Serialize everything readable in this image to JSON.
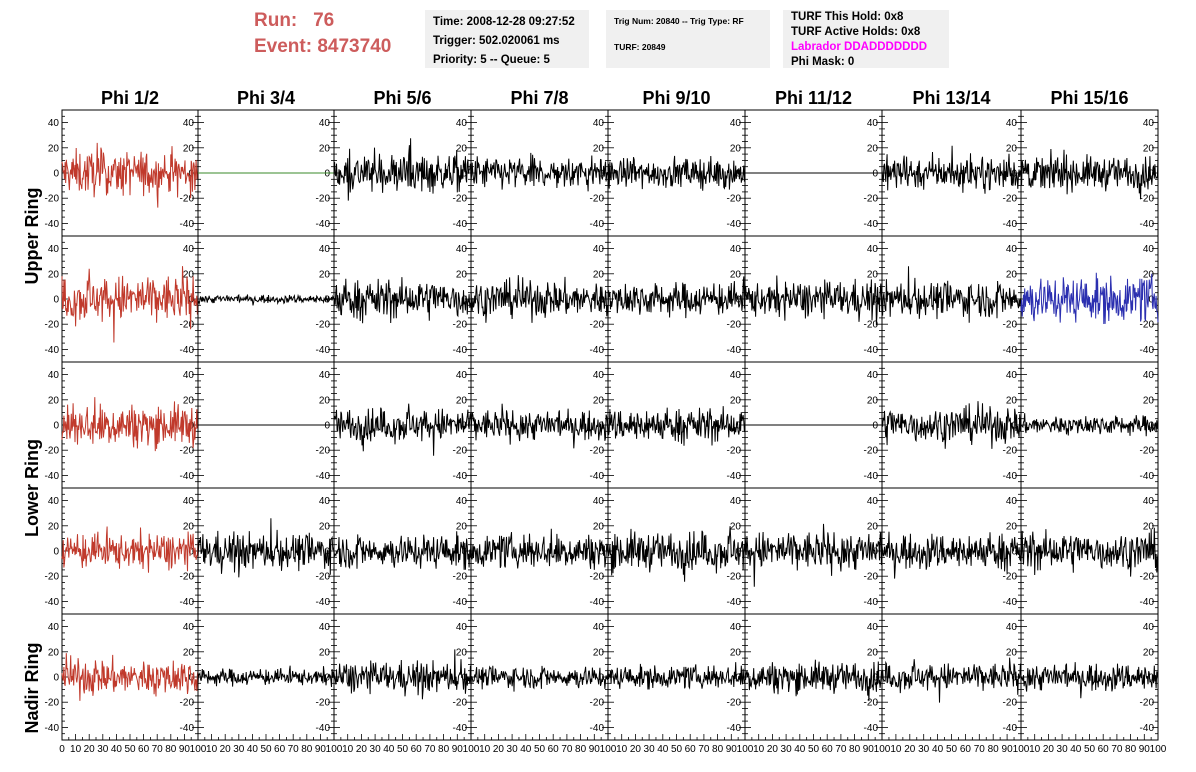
{
  "header": {
    "run_label": "Run:",
    "run_value": "76",
    "event_label": "Event:",
    "event_value": "8473740",
    "time": "Time: 2008-12-28 09:27:52",
    "trigger": "Trigger: 502.020061 ms",
    "priority": "Priority: 5 -- Queue: 5",
    "trig_num": "Trig Num: 20840 -- Trig Type: RF",
    "turf": "TURF: 20849",
    "turf_this_hold": "TURF This Hold: 0x8",
    "turf_active_holds": "TURF Active Holds: 0x8",
    "labrador": "Labrador DDADDDDDDD",
    "phi_mask": "Phi Mask: 0"
  },
  "colors": {
    "header_run": "#cd5c5c",
    "labrador": "#ff00ff",
    "box_bg": "#f0f0f0",
    "trace_red": "#c0392b",
    "trace_black": "#000000",
    "trace_green": "#3a8a2a",
    "trace_blue": "#2b2fb0"
  },
  "chart_data": {
    "type": "line",
    "columns": [
      "Phi 1/2",
      "Phi 3/4",
      "Phi 5/6",
      "Phi 7/8",
      "Phi 9/10",
      "Phi 11/12",
      "Phi 13/14",
      "Phi 15/16"
    ],
    "rows": [
      "Upper Ring",
      "Upper Ring",
      "Lower Ring",
      "Lower Ring",
      "Nadir Ring"
    ],
    "row_labels": [
      "Upper Ring",
      "Lower Ring",
      "Nadir Ring"
    ],
    "ylim": [
      -50,
      50
    ],
    "y_ticks": [
      "40",
      "20",
      "0",
      "-20",
      "-40"
    ],
    "xlim": [
      0,
      100
    ],
    "x_tick_labels_first": [
      "0",
      "10",
      "20",
      "30",
      "40",
      "50",
      "60",
      "70",
      "80",
      "90",
      "100"
    ],
    "x_tick_labels_other": [
      "10",
      "20",
      "30",
      "40",
      "50",
      "60",
      "70",
      "80",
      "90",
      "100"
    ],
    "panels": [
      [
        {
          "color": "red",
          "amp": 16
        },
        {
          "color": "green",
          "amp": 0
        },
        {
          "color": "black",
          "amp": 14
        },
        {
          "color": "black",
          "amp": 12
        },
        {
          "color": "black",
          "amp": 11
        },
        {
          "color": "black",
          "amp": 0
        },
        {
          "color": "black",
          "amp": 12
        },
        {
          "color": "black",
          "amp": 12
        }
      ],
      [
        {
          "color": "red",
          "amp": 17
        },
        {
          "color": "black",
          "amp": 3
        },
        {
          "color": "black",
          "amp": 14
        },
        {
          "color": "black",
          "amp": 13
        },
        {
          "color": "black",
          "amp": 12
        },
        {
          "color": "black",
          "amp": 13
        },
        {
          "color": "black",
          "amp": 13
        },
        {
          "color": "blue",
          "amp": 16
        }
      ],
      [
        {
          "color": "red",
          "amp": 15
        },
        {
          "color": "black",
          "amp": 0
        },
        {
          "color": "black",
          "amp": 12
        },
        {
          "color": "black",
          "amp": 11
        },
        {
          "color": "black",
          "amp": 12
        },
        {
          "color": "black",
          "amp": 0
        },
        {
          "color": "black",
          "amp": 13
        },
        {
          "color": "black",
          "amp": 7
        }
      ],
      [
        {
          "color": "red",
          "amp": 13
        },
        {
          "color": "black",
          "amp": 13
        },
        {
          "color": "black",
          "amp": 12
        },
        {
          "color": "black",
          "amp": 12
        },
        {
          "color": "black",
          "amp": 14
        },
        {
          "color": "black",
          "amp": 14
        },
        {
          "color": "black",
          "amp": 13
        },
        {
          "color": "black",
          "amp": 14
        }
      ],
      [
        {
          "color": "red",
          "amp": 13
        },
        {
          "color": "black",
          "amp": 6
        },
        {
          "color": "black",
          "amp": 11
        },
        {
          "color": "black",
          "amp": 8
        },
        {
          "color": "black",
          "amp": 8
        },
        {
          "color": "black",
          "amp": 11
        },
        {
          "color": "black",
          "amp": 10
        },
        {
          "color": "black",
          "amp": 10
        }
      ]
    ]
  }
}
